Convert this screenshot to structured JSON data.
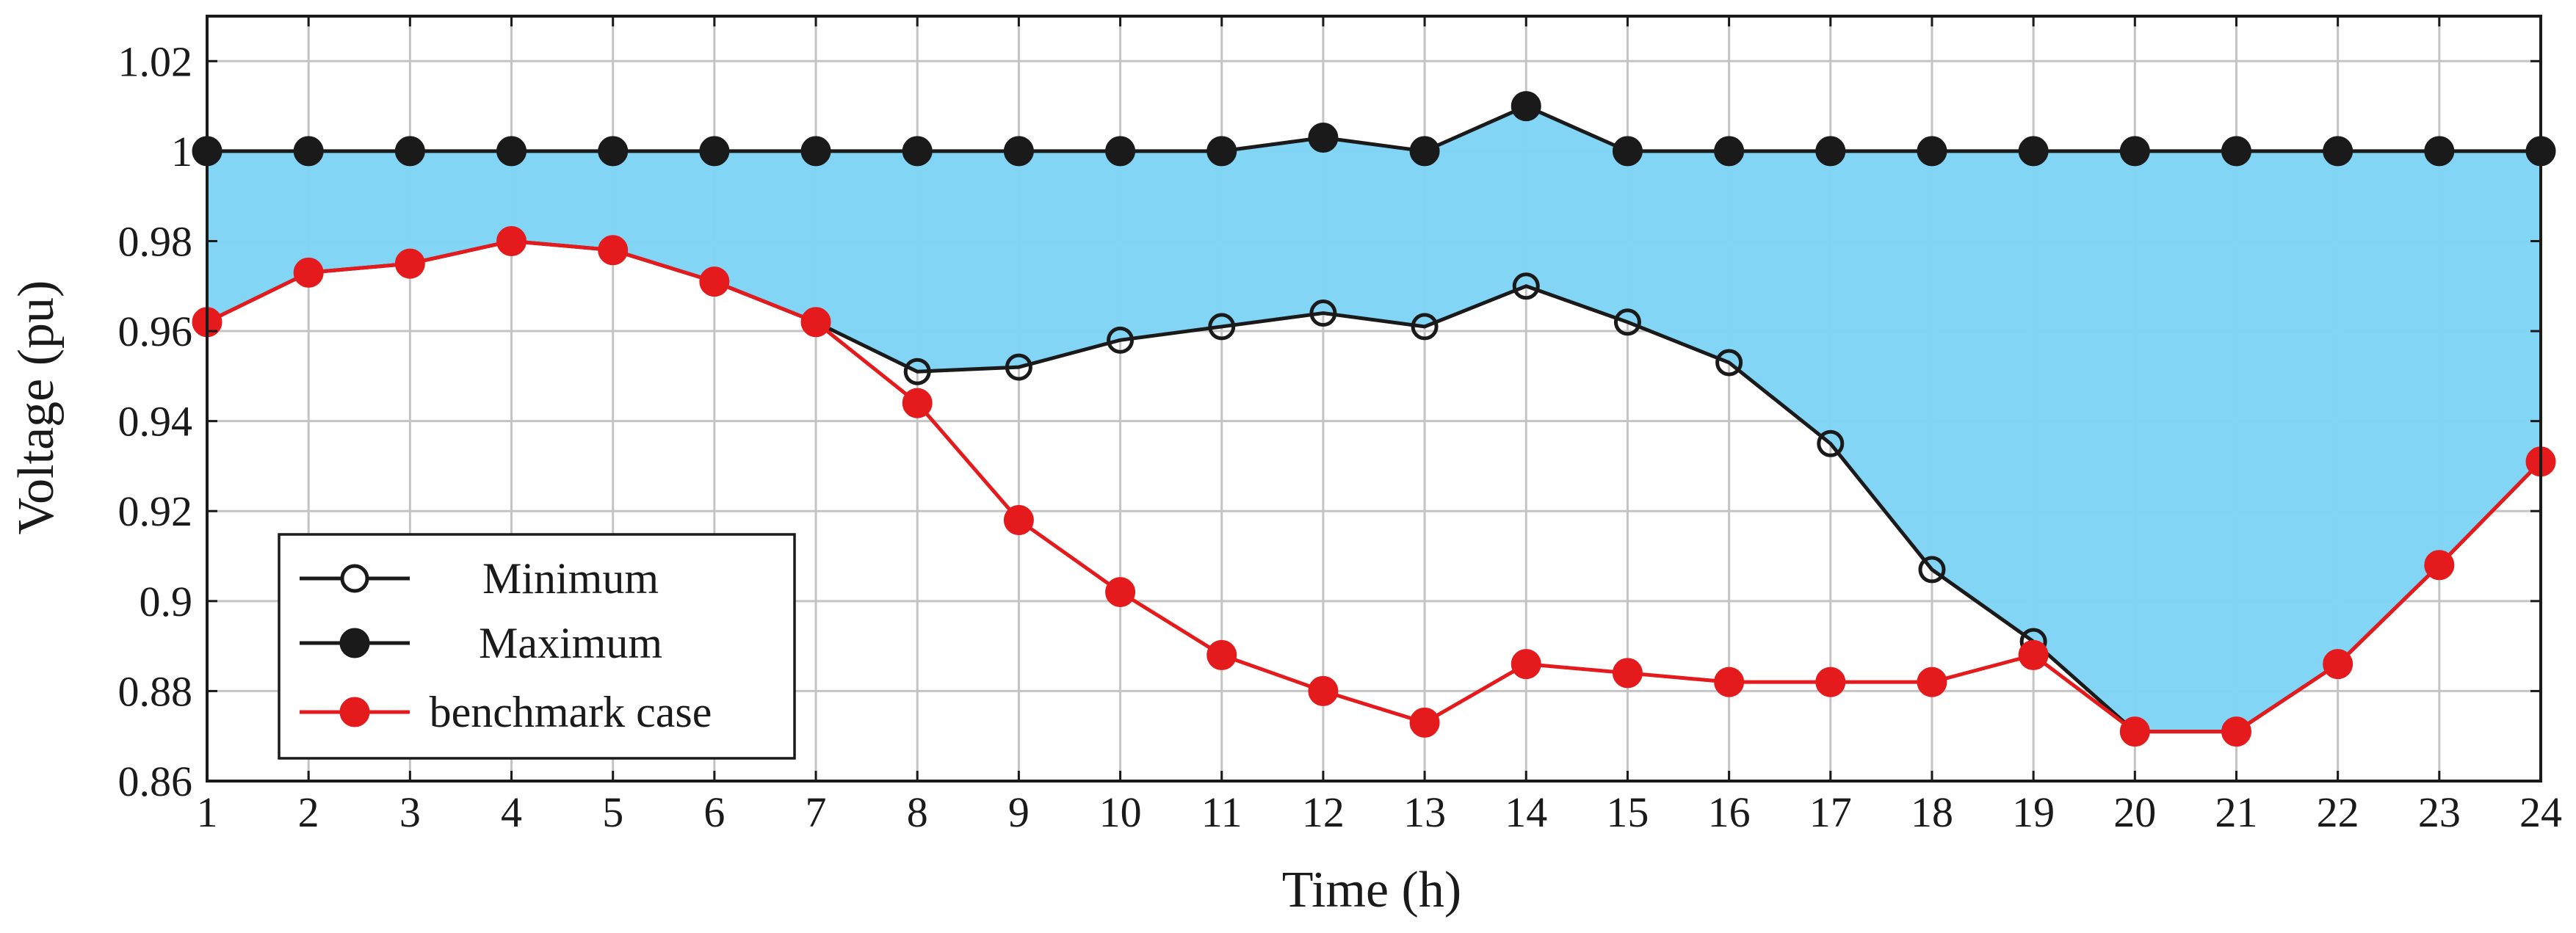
{
  "chart_data": {
    "type": "line",
    "title": "",
    "xlabel": "Time (h)",
    "ylabel": "Voltage (pu)",
    "x": [
      1,
      2,
      3,
      4,
      5,
      6,
      7,
      8,
      9,
      10,
      11,
      12,
      13,
      14,
      15,
      16,
      17,
      18,
      19,
      20,
      21,
      22,
      23,
      24
    ],
    "xlim": [
      1,
      24
    ],
    "ylim": [
      0.86,
      1.03
    ],
    "yticks": [
      0.86,
      0.88,
      0.9,
      0.92,
      0.94,
      0.96,
      0.98,
      1,
      1.02
    ],
    "ytick_labels": [
      "0.86",
      "0.88",
      "0.9",
      "0.92",
      "0.94",
      "0.96",
      "0.98",
      "1",
      "1.02"
    ],
    "xtick_labels": [
      "1",
      "2",
      "3",
      "4",
      "5",
      "6",
      "7",
      "8",
      "9",
      "10",
      "11",
      "12",
      "13",
      "14",
      "15",
      "16",
      "17",
      "18",
      "19",
      "20",
      "21",
      "22",
      "23",
      "24"
    ],
    "grid": true,
    "legend_position": "bottom-left",
    "fill_between": {
      "lower": "Minimum",
      "upper": "Maximum",
      "color": "#80d4f5"
    },
    "series": [
      {
        "name": "Minimum",
        "color": "#1a1a1a",
        "marker": "open-circle",
        "values": [
          0.962,
          0.973,
          0.975,
          0.98,
          0.978,
          0.971,
          0.962,
          0.951,
          0.952,
          0.958,
          0.961,
          0.964,
          0.961,
          0.97,
          0.962,
          0.953,
          0.935,
          0.907,
          0.891,
          0.871,
          0.871,
          0.886,
          0.908,
          0.931
        ]
      },
      {
        "name": "Maximum",
        "color": "#1a1a1a",
        "marker": "filled-circle",
        "values": [
          1.0,
          1.0,
          1.0,
          1.0,
          1.0,
          1.0,
          1.0,
          1.0,
          1.0,
          1.0,
          1.0,
          1.003,
          1.0,
          1.01,
          1.0,
          1.0,
          1.0,
          1.0,
          1.0,
          1.0,
          1.0,
          1.0,
          1.0,
          1.0
        ]
      },
      {
        "name": "benchmark case",
        "color": "#e41a1c",
        "marker": "filled-circle",
        "values": [
          0.962,
          0.973,
          0.975,
          0.98,
          0.978,
          0.971,
          0.962,
          0.944,
          0.918,
          0.902,
          0.888,
          0.88,
          0.873,
          0.886,
          0.884,
          0.882,
          0.882,
          0.882,
          0.888,
          0.871,
          0.871,
          0.886,
          0.908,
          0.931
        ]
      }
    ]
  }
}
